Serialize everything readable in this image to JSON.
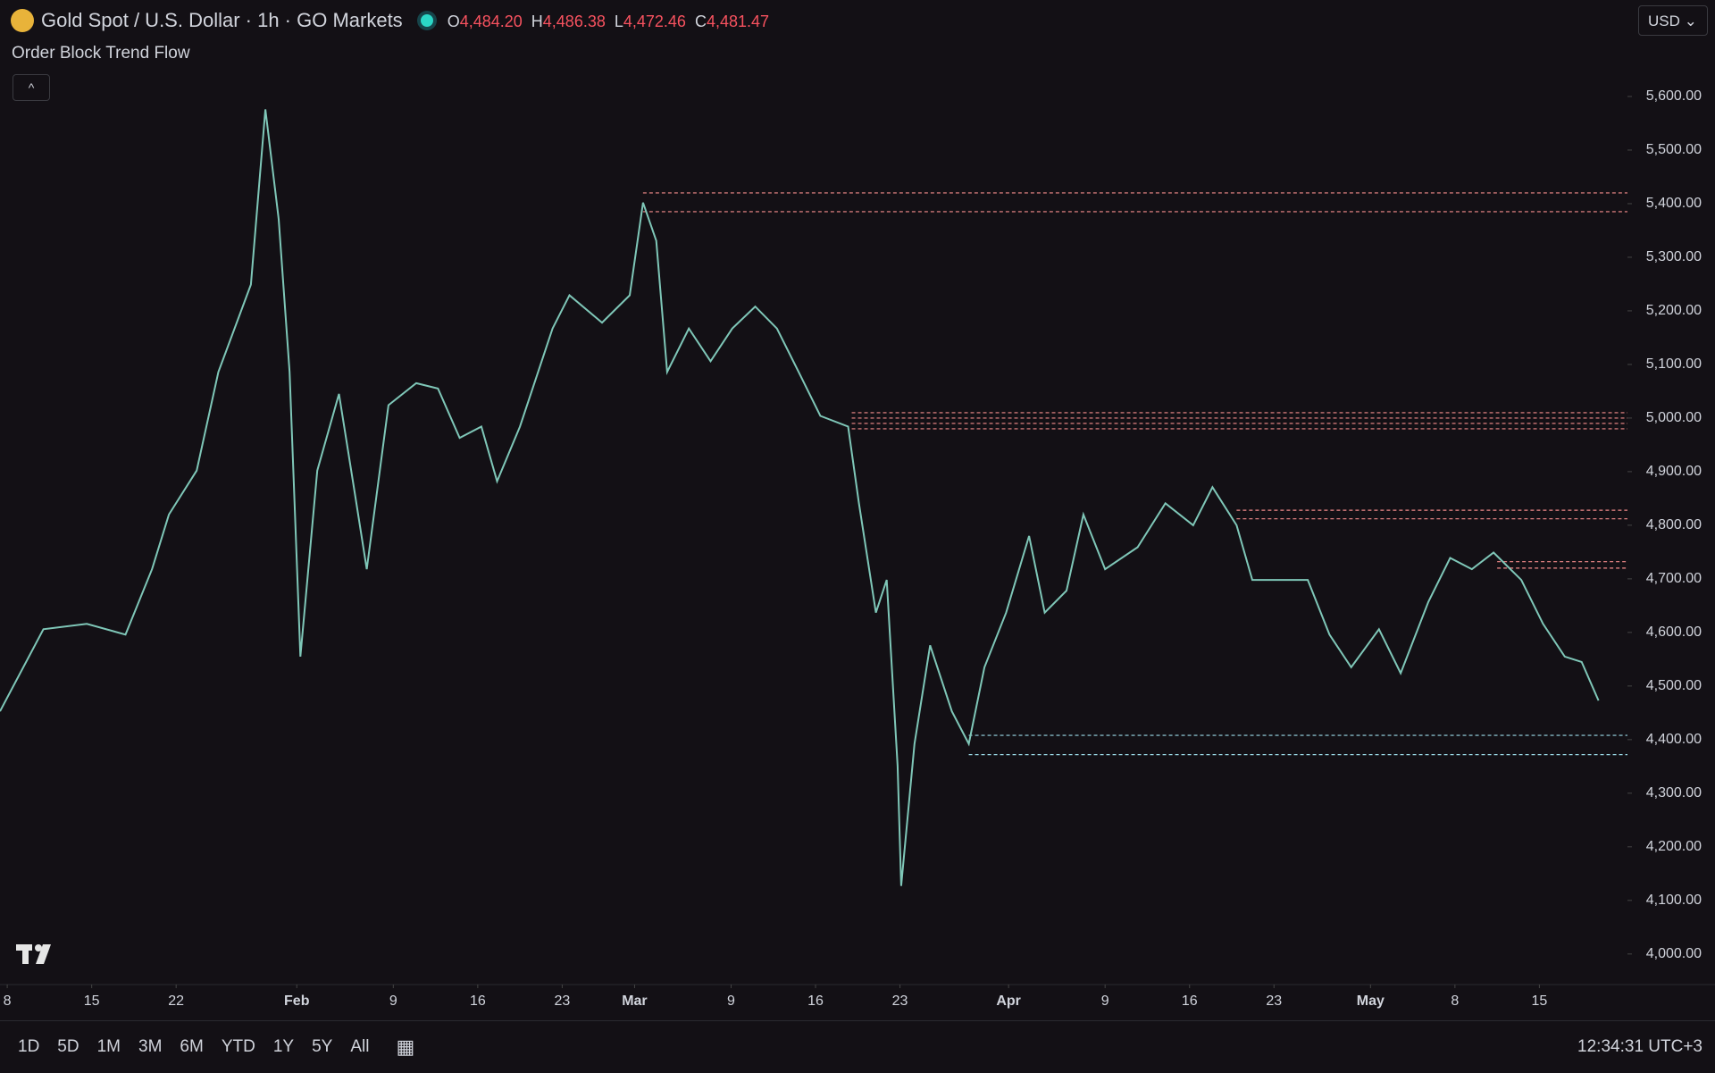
{
  "header": {
    "title": "Gold Spot / U.S. Dollar · 1h · GO Markets",
    "ohlc": [
      {
        "label": "O",
        "value": "4,484.20"
      },
      {
        "label": "H",
        "value": "4,486.38"
      },
      {
        "label": "L",
        "value": "4,472.46"
      },
      {
        "label": "C",
        "value": "4,481.47"
      }
    ],
    "indicator": "Order Block Trend Flow",
    "currency": "USD"
  },
  "toolbar": {
    "ranges": [
      "1D",
      "5D",
      "1M",
      "3M",
      "6M",
      "YTD",
      "1Y",
      "5Y",
      "All"
    ],
    "clock": "12:34:31 UTC+3"
  },
  "chart_data": {
    "type": "line",
    "color": "#7fc7b8",
    "x": [
      7.4,
      11,
      14.6,
      17.8,
      20,
      21.4,
      23.7,
      25.5,
      28.2,
      29.4,
      30.5,
      31.4,
      32.3,
      33.7,
      35.5,
      36.8,
      37.8,
      39.6,
      41.9,
      43.7,
      45.5,
      47.3,
      48.6,
      50.5,
      53.2,
      54.6,
      57.3,
      59.6,
      60.7,
      61.8,
      62.7,
      64.5,
      66.3,
      68.1,
      70,
      71.8,
      73.6,
      75.4,
      77.7,
      78.6,
      80,
      80.9,
      81.8,
      82.1,
      83.2,
      84.5,
      86.3,
      87.7,
      89,
      90.8,
      92.7,
      94,
      95.8,
      97.2,
      99,
      101.7,
      104,
      106.3,
      107.9,
      109.9,
      111.2,
      113.5,
      115.8,
      117.6,
      119.4,
      121.7,
      123.5,
      125.8,
      127.6,
      129.4,
      131.2,
      133.5,
      135.3,
      137.1,
      138.5,
      139.9
    ],
    "values": [
      4453,
      4606,
      4616,
      4596,
      4718,
      4820,
      4902,
      5086,
      5249,
      5576,
      5371,
      5086,
      4555,
      4902,
      5045,
      4861,
      4718,
      5024,
      5065,
      5055,
      4963,
      4984,
      4882,
      4984,
      5167,
      5229,
      5178,
      5229,
      5402,
      5331,
      5086,
      5167,
      5106,
      5167,
      5208,
      5167,
      5086,
      5004,
      4984,
      4841,
      4637,
      4698,
      4351,
      4127,
      4392,
      4576,
      4453,
      4392,
      4535,
      4637,
      4780,
      4637,
      4678,
      4820,
      4718,
      4759,
      4841,
      4800,
      4871,
      4800,
      4698,
      4698,
      4698,
      4596,
      4535,
      4606,
      4524,
      4657,
      4739,
      4718,
      4749,
      4698,
      4616,
      4555,
      4545,
      4473
    ],
    "levels": [
      {
        "price": 5420,
        "from": 60.7,
        "color": "#f48c8c"
      },
      {
        "price": 5385,
        "from": 60.7,
        "color": "#f48c8c"
      },
      {
        "price": 5010,
        "from": 78,
        "color": "#f48c8c"
      },
      {
        "price": 5000,
        "from": 78,
        "color": "#f48c8c"
      },
      {
        "price": 4990,
        "from": 78,
        "color": "#f48c8c"
      },
      {
        "price": 4980,
        "from": 78,
        "color": "#f48c8c"
      },
      {
        "price": 4828,
        "from": 109.9,
        "color": "#f48c8c"
      },
      {
        "price": 4812,
        "from": 109.9,
        "color": "#f48c8c"
      },
      {
        "price": 4732,
        "from": 131.5,
        "color": "#f48c8c"
      },
      {
        "price": 4720,
        "from": 131.5,
        "color": "#f48c8c"
      },
      {
        "price": 4408,
        "from": 87.7,
        "color": "#9ad9e6"
      },
      {
        "price": 4372,
        "from": 87.7,
        "color": "#9ad9e6"
      }
    ],
    "xlim": [
      7.4,
      142.3
    ],
    "xticks": [
      8,
      15,
      22,
      {
        "value": 32,
        "label": "Feb"
      },
      {
        "value": 40,
        "label": "9"
      },
      {
        "value": 47,
        "label": "16"
      },
      {
        "value": 54,
        "label": "23"
      },
      {
        "value": 60,
        "label": "Mar"
      },
      {
        "value": 68,
        "label": "9"
      },
      {
        "value": 75,
        "label": "16"
      },
      {
        "value": 82,
        "label": "23"
      },
      {
        "value": 91,
        "label": "Apr"
      },
      {
        "value": 99,
        "label": "9"
      },
      {
        "value": 106,
        "label": "16"
      },
      {
        "value": 113,
        "label": "23"
      },
      {
        "value": 121,
        "label": "May"
      },
      {
        "value": 128,
        "label": "8"
      },
      {
        "value": 135,
        "label": "15"
      }
    ],
    "ylim": [
      3943,
      5780
    ],
    "yticks": [
      {
        "value": 4000,
        "label": "4,000.00"
      },
      {
        "value": 4100,
        "label": "4,100.00"
      },
      {
        "value": 4200,
        "label": "4,200.00"
      },
      {
        "value": 4300,
        "label": "4,300.00"
      },
      {
        "value": 4400,
        "label": "4,400.00"
      },
      {
        "value": 4500,
        "label": "4,500.00"
      },
      {
        "value": 4600,
        "label": "4,600.00"
      },
      {
        "value": 4700,
        "label": "4,700.00"
      },
      {
        "value": 4800,
        "label": "4,800.00"
      },
      {
        "value": 4900,
        "label": "4,900.00"
      },
      {
        "value": 5000,
        "label": "5,000.00"
      },
      {
        "value": 5100,
        "label": "5,100.00"
      },
      {
        "value": 5200,
        "label": "5,200.00"
      },
      {
        "value": 5300,
        "label": "5,300.00"
      },
      {
        "value": 5400,
        "label": "5,400.00"
      },
      {
        "value": 5500,
        "label": "5,500.00"
      },
      {
        "value": 5600,
        "label": "5,600.00"
      }
    ]
  }
}
